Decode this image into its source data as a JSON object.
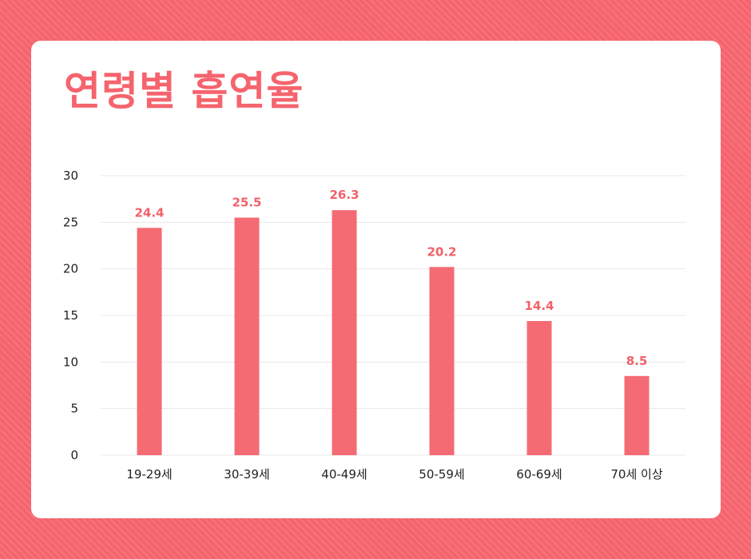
{
  "title": "연령별 흡연율",
  "colors": {
    "accent": "#f5646d",
    "bar": "#f56b74",
    "label": "#f1616a",
    "axis_text": "#222222",
    "grid": "#e8e8e8"
  },
  "chart_data": {
    "type": "bar",
    "title": "",
    "xlabel": "",
    "ylabel": "",
    "categories": [
      "19-29세",
      "30-39세",
      "40-49세",
      "50-59세",
      "60-69세",
      "70세 이상"
    ],
    "values": [
      24.4,
      25.5,
      26.3,
      20.2,
      14.4,
      8.5
    ],
    "value_labels": [
      "24.4",
      "25.5",
      "26.3",
      "20.2",
      "14.4",
      "8.5"
    ],
    "yticks": [
      "0",
      "5",
      "10",
      "15",
      "20",
      "25",
      "30"
    ],
    "ylim": [
      0,
      30
    ],
    "grid": true,
    "legend": "none"
  }
}
